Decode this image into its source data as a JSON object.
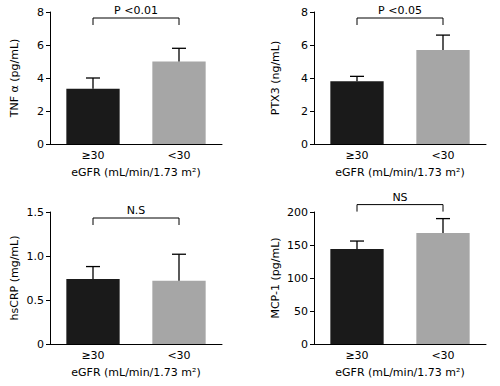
{
  "chart_data": [
    {
      "type": "bar",
      "y_label": "TNF α (pg/mL)",
      "x_label": "eGFR (mL/min/1.73 m²)",
      "categories": [
        "≥30",
        "<30"
      ],
      "values": [
        3.35,
        5.0
      ],
      "errors": [
        0.65,
        0.8
      ],
      "colors": [
        "#1a1a1a",
        "#a6a6a6"
      ],
      "ylim": [
        0,
        8
      ],
      "yticks": [
        0,
        2,
        4,
        6,
        8
      ],
      "annotation": "P <0.01",
      "grid": false
    },
    {
      "type": "bar",
      "y_label": "PTX3 (ng/mL)",
      "x_label": "eGFR (mL/min/1.73 m²)",
      "categories": [
        "≥30",
        "<30"
      ],
      "values": [
        3.8,
        5.7
      ],
      "errors": [
        0.3,
        0.9
      ],
      "colors": [
        "#1a1a1a",
        "#a6a6a6"
      ],
      "ylim": [
        0,
        8
      ],
      "yticks": [
        0,
        2,
        4,
        6,
        8
      ],
      "annotation": "P <0.05",
      "grid": false
    },
    {
      "type": "bar",
      "y_label": "hsCRP (mg/mL)",
      "x_label": "eGFR (mL/min/1.73 m²)",
      "categories": [
        "≥30",
        "<30"
      ],
      "values": [
        0.74,
        0.72
      ],
      "errors": [
        0.14,
        0.3
      ],
      "colors": [
        "#1a1a1a",
        "#a6a6a6"
      ],
      "ylim": [
        0,
        1.5
      ],
      "yticks": [
        0,
        0.5,
        {
          "value": 1,
          "label": "1.0"
        },
        1.5
      ],
      "annotation": "N.S",
      "grid": false
    },
    {
      "type": "bar",
      "y_label": "MCP-1 (pg/mL)",
      "x_label": "eGFR (mL/min/1.73 m²)",
      "categories": [
        "≥30",
        "<30"
      ],
      "values": [
        144,
        168
      ],
      "errors": [
        12,
        22
      ],
      "colors": [
        "#1a1a1a",
        "#a6a6a6"
      ],
      "ylim": [
        0,
        200
      ],
      "yticks": [
        0,
        50,
        100,
        150,
        200
      ],
      "annotation": "NS",
      "grid": false
    }
  ]
}
